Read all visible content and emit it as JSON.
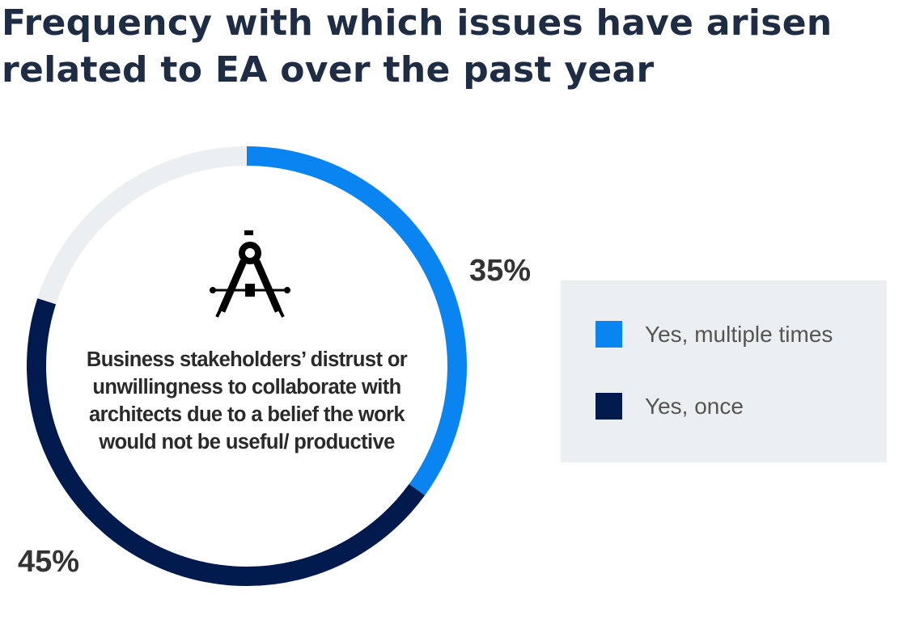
{
  "title": "Frequency with which issues have arisen related to EA over the past year",
  "icon": "drafting-compass-icon",
  "chart_data": {
    "type": "pie",
    "donut": true,
    "title": "Frequency with which issues have arisen related to EA over the past year",
    "center_label": "Business stakeholders’ distrust or unwillingness to collaborate with architects due to a belief the work would not be useful/ productive",
    "slices": [
      {
        "name": "Yes, multiple times",
        "value": 35,
        "label": "35%",
        "color": "#0a84f0"
      },
      {
        "name": "Yes, once",
        "value": 45,
        "label": "45%",
        "color": "#001a4d"
      },
      {
        "name": "",
        "value": 20,
        "label": "",
        "color": "#eceff1"
      }
    ],
    "legend": {
      "placement": "right",
      "entries": [
        {
          "label": "Yes, multiple times",
          "color": "#0a84f0"
        },
        {
          "label": "Yes, once",
          "color": "#001a4d"
        }
      ]
    }
  }
}
